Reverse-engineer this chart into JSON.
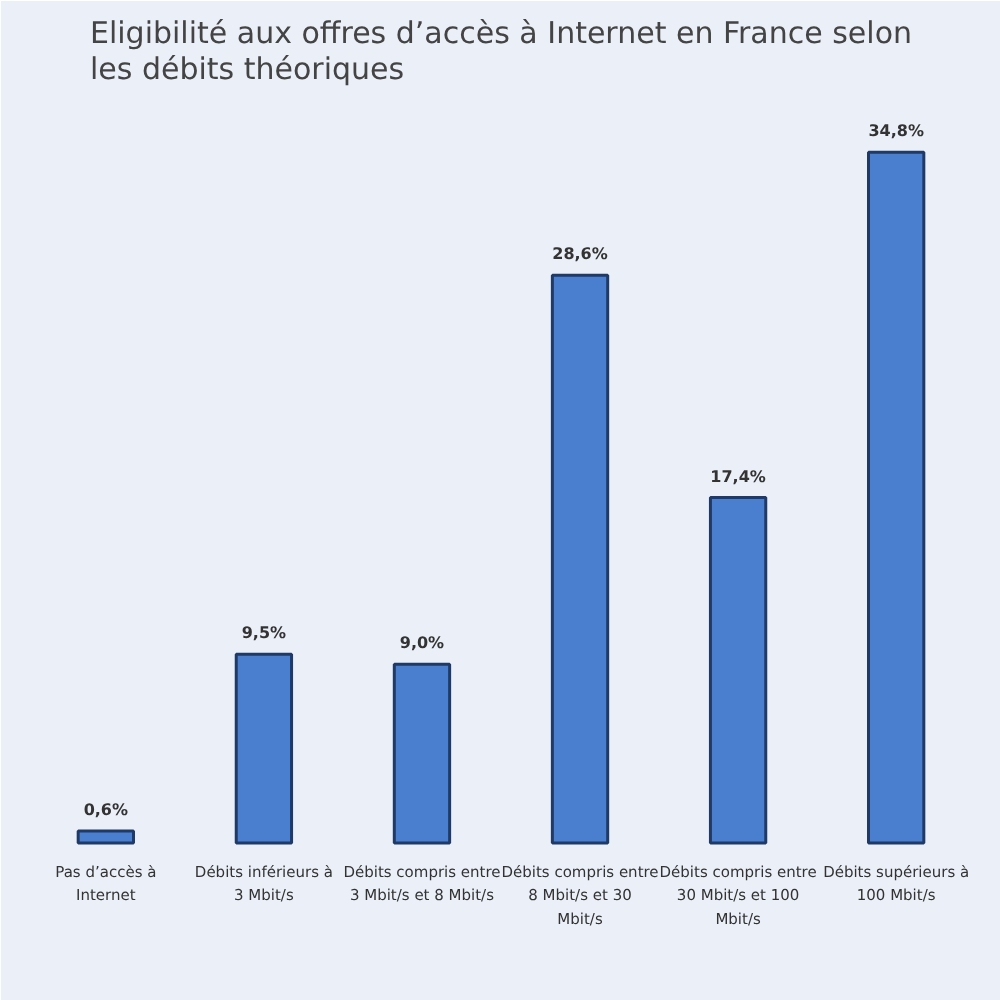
{
  "chart_data": {
    "type": "bar",
    "title": "Eligibilité aux offres d’accès à Internet en France selon les débits théoriques",
    "categories": [
      "Pas d’accès à Internet",
      "Débits inférieurs à 3 Mbit/s",
      "Débits compris entre 3 Mbit/s et 8 Mbit/s",
      "Débits compris entre 8 Mbit/s et 30 Mbit/s",
      "Débits compris entre 30 Mbit/s et 100 Mbit/s",
      "Débits supérieurs à 100 Mbit/s"
    ],
    "values": [
      0.6,
      9.5,
      9.0,
      28.6,
      17.4,
      34.8
    ],
    "value_labels": [
      "0,6%",
      "9,5%",
      "9,0%",
      "28,6%",
      "17,4%",
      "34,8%"
    ],
    "color": "#4a7fcf"
  }
}
